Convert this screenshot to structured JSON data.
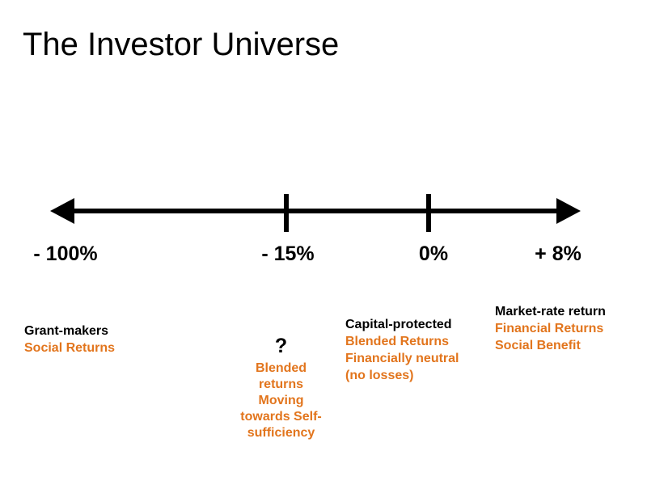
{
  "slide_title": "The Investor Universe",
  "colors": {
    "background": "#FFFFFF",
    "ink": "#000000",
    "accent_orange": "#E2751D"
  },
  "spectrum": {
    "axis_icons": [
      "left-arrowhead",
      "right-arrowhead"
    ],
    "points": [
      {
        "value": "- 100%",
        "lines": [
          {
            "text": "Grant-makers"
          },
          {
            "text": "Social Returns"
          }
        ]
      },
      {
        "value": "- 15%",
        "question_mark": "?",
        "lines": [
          {
            "text": "Blended"
          },
          {
            "text": "returns"
          },
          {
            "text": "Moving"
          },
          {
            "text": "towards Self-"
          },
          {
            "text": "sufficiency"
          }
        ]
      },
      {
        "value": "0%",
        "lines": [
          {
            "text": "Capital-protected"
          },
          {
            "text": "Blended Returns"
          },
          {
            "text": "Financially neutral"
          },
          {
            "text": "(no losses)"
          }
        ]
      },
      {
        "value": "+ 8%",
        "lines": [
          {
            "text": "Market-rate return"
          },
          {
            "text": "Financial Returns"
          },
          {
            "text": "Social Benefit"
          }
        ]
      }
    ]
  }
}
